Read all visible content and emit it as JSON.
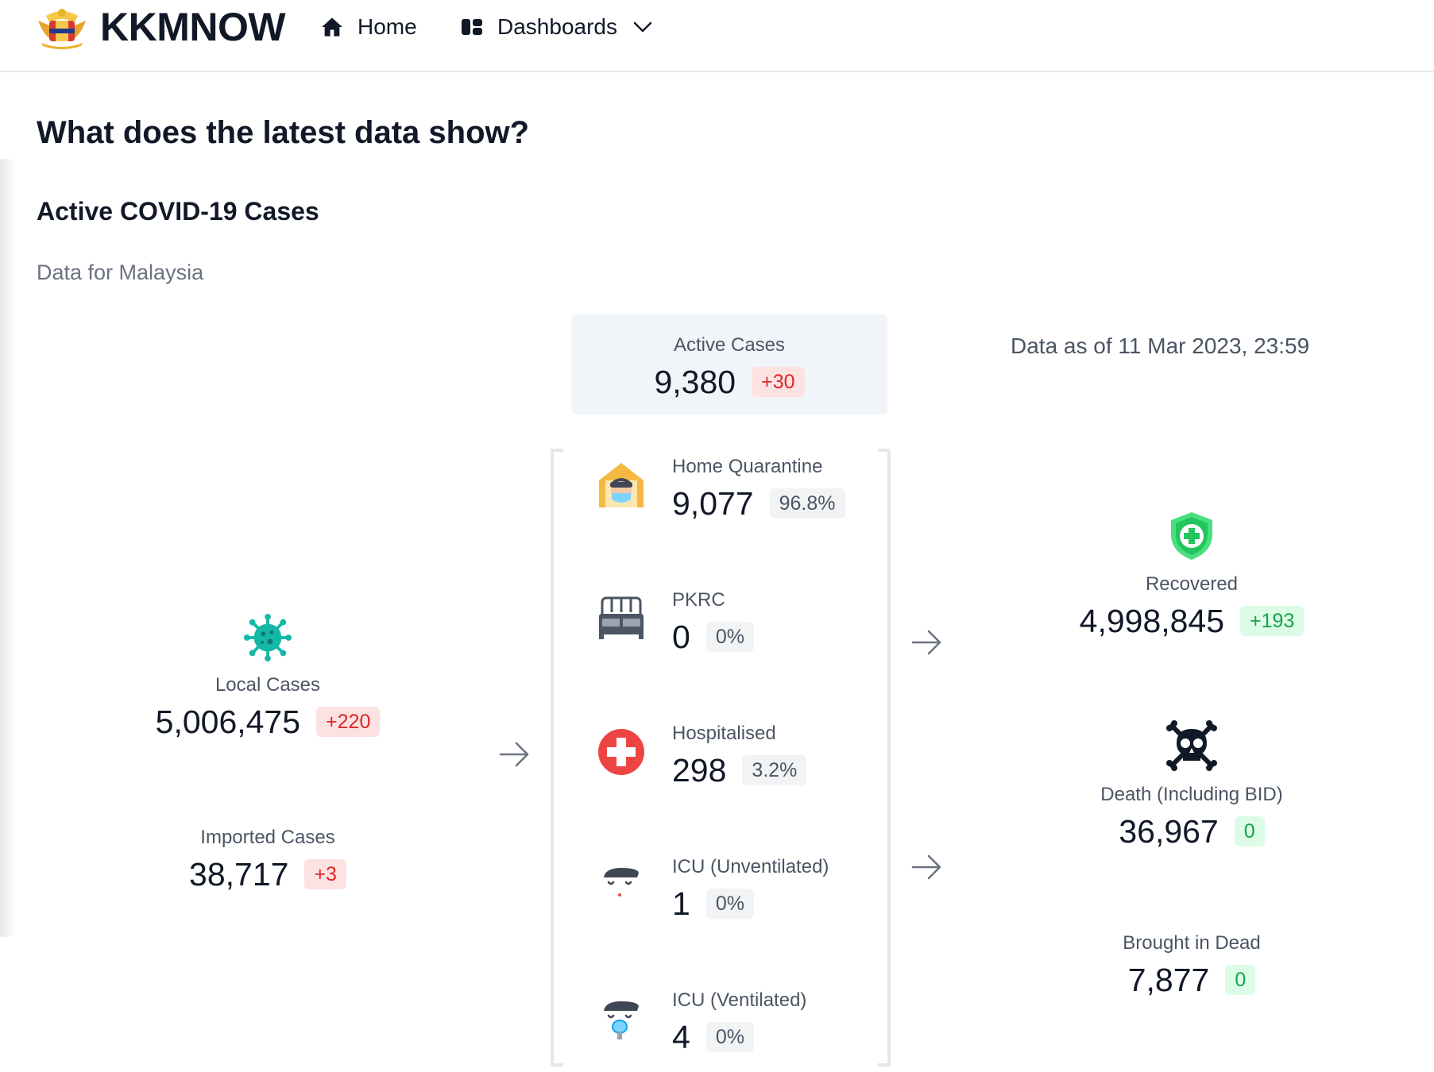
{
  "header": {
    "brand": "KKMNOW",
    "nav": {
      "home_label": "Home",
      "dashboards_label": "Dashboards"
    }
  },
  "page": {
    "title": "What does the latest data show?",
    "section_title": "Active COVID-19 Cases",
    "subtitle": "Data for Malaysia",
    "data_as_of": "Data as of 11 Mar 2023, 23:59"
  },
  "active_cases": {
    "label": "Active Cases",
    "value": "9,380",
    "change": "+30"
  },
  "inflow": {
    "local": {
      "label": "Local Cases",
      "value": "5,006,475",
      "change": "+220",
      "icon": "virus-icon"
    },
    "imported": {
      "label": "Imported Cases",
      "value": "38,717",
      "change": "+3"
    }
  },
  "breakdown": [
    {
      "key": "home-quarantine",
      "label": "Home Quarantine",
      "value": "9,077",
      "pct": "96.8%",
      "icon": "house-mask-icon"
    },
    {
      "key": "pkrc",
      "label": "PKRC",
      "value": "0",
      "pct": "0%",
      "icon": "bed-icon"
    },
    {
      "key": "hospitalised",
      "label": "Hospitalised",
      "value": "298",
      "pct": "3.2%",
      "icon": "medical-cross-icon"
    },
    {
      "key": "icu-unventilated",
      "label": "ICU (Unventilated)",
      "value": "1",
      "pct": "0%",
      "icon": "patient-icon"
    },
    {
      "key": "icu-ventilated",
      "label": "ICU (Ventilated)",
      "value": "4",
      "pct": "0%",
      "icon": "ventilator-patient-icon"
    }
  ],
  "outflow": {
    "recovered": {
      "label": "Recovered",
      "value": "4,998,845",
      "change": "+193",
      "icon": "shield-plus-icon"
    },
    "death": {
      "label": "Death (Including BID)",
      "value": "36,967",
      "change": "0",
      "icon": "skull-crossbones-icon"
    },
    "bid": {
      "label": "Brought in Dead",
      "value": "7,877",
      "change": "0"
    }
  },
  "colors": {
    "increase_red": "#dc2626",
    "decrease_green": "#16a34a",
    "virus_teal": "#14b8a6",
    "hospital_red": "#ef4444",
    "shield_green": "#22c55e"
  }
}
